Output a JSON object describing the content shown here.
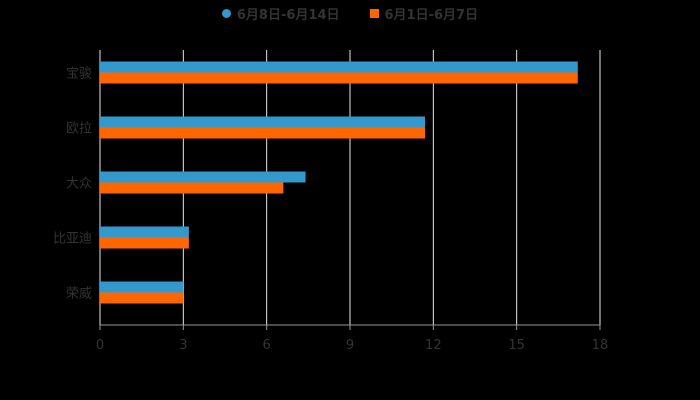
{
  "chart_data": {
    "type": "bar",
    "orientation": "horizontal",
    "title": "",
    "xlabel": "",
    "ylabel": "",
    "categories": [
      "宝骏",
      "欧拉",
      "大众",
      "比亚迪",
      "荣威"
    ],
    "series": [
      {
        "name": "6月8日-6月14日",
        "color": "#3399cc",
        "values": [
          17.2,
          11.7,
          7.4,
          3.2,
          3.0
        ]
      },
      {
        "name": "6月1日-6月7日",
        "color": "#ff6600",
        "values": [
          17.2,
          11.7,
          6.6,
          3.2,
          3.0
        ]
      }
    ],
    "xlim": [
      0,
      18
    ],
    "xticks": [
      0,
      3,
      6,
      9,
      12,
      15,
      18
    ],
    "grid": true,
    "legend_position": "top"
  },
  "legend": {
    "items": [
      {
        "label": "6月8日-6月14日",
        "color": "#3399cc",
        "shape": "circle"
      },
      {
        "label": "6月1日-6月7日",
        "color": "#ff6600",
        "shape": "square"
      }
    ]
  }
}
